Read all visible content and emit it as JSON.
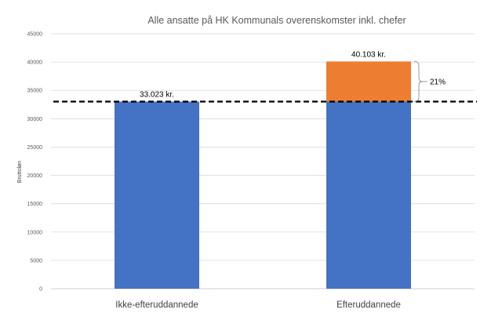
{
  "chart_data": {
    "type": "bar",
    "stacked": true,
    "title": "Alle ansatte på HK Kommunals overenskomster inkl. chefer",
    "ylabel": "Bruttoløn",
    "xlabel": "",
    "ylim": [
      0,
      45000
    ],
    "yticks": [
      "0",
      "5000",
      "10000",
      "15000",
      "20000",
      "25000",
      "30000",
      "35000",
      "40000",
      "45000"
    ],
    "grid": true,
    "legend": "none",
    "categories": [
      "Ikke-efteruddannede",
      "Efteruddannede"
    ],
    "series": [
      {
        "color": "#4472C4",
        "values": [
          33023,
          33023
        ]
      },
      {
        "color": "#ED7D31",
        "values": [
          0,
          7080
        ]
      }
    ],
    "data_labels": [
      "33.023 kr.",
      "40.103 kr."
    ],
    "reference_line": {
      "value": 33023,
      "style": "dashed",
      "color": "#000000"
    },
    "annotation": {
      "text": "21%",
      "from": 33023,
      "to": 40103
    }
  }
}
